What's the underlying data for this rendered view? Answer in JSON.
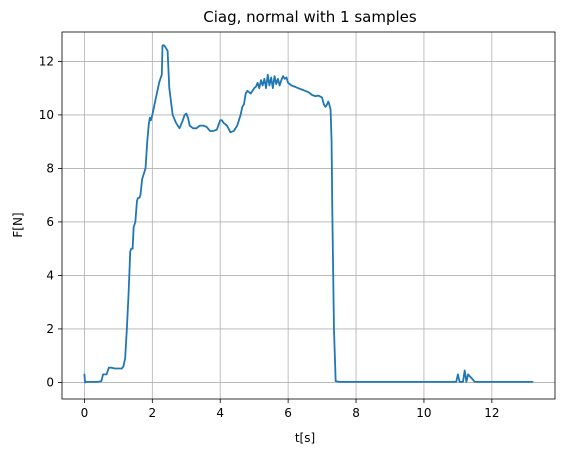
{
  "chart_data": {
    "type": "line",
    "title": "Ciag, normal with 1 samples",
    "xlabel": "t[s]",
    "ylabel": "F[N]",
    "xlim": [
      -0.66,
      13.86
    ],
    "ylim": [
      -0.62,
      13.1
    ],
    "xticks": [
      0,
      2,
      4,
      6,
      8,
      10,
      12
    ],
    "yticks": [
      0,
      2,
      4,
      6,
      8,
      10,
      12
    ],
    "grid": true,
    "colors": {
      "line": "#1f77b4",
      "grid": "#b0b0b0",
      "axes": "#000000"
    },
    "series": [
      {
        "x": [
          0.0,
          0.02,
          0.05,
          0.2,
          0.4,
          0.5,
          0.55,
          0.6,
          0.65,
          0.72,
          0.8,
          0.9,
          1.0,
          1.1,
          1.15,
          1.2,
          1.25,
          1.3,
          1.35,
          1.38,
          1.42,
          1.45,
          1.5,
          1.53,
          1.55,
          1.58,
          1.62,
          1.65,
          1.7,
          1.75,
          1.8,
          1.85,
          1.9,
          1.93,
          1.96,
          2.0,
          2.05,
          2.1,
          2.15,
          2.2,
          2.25,
          2.28,
          2.3,
          2.35,
          2.4,
          2.45,
          2.5,
          2.55,
          2.6,
          2.7,
          2.8,
          2.9,
          2.95,
          3.0,
          3.05,
          3.1,
          3.2,
          3.3,
          3.4,
          3.5,
          3.6,
          3.7,
          3.8,
          3.9,
          4.0,
          4.05,
          4.1,
          4.2,
          4.3,
          4.4,
          4.5,
          4.6,
          4.65,
          4.7,
          4.75,
          4.8,
          4.85,
          4.9,
          5.0,
          5.05,
          5.1,
          5.15,
          5.2,
          5.25,
          5.3,
          5.35,
          5.4,
          5.45,
          5.5,
          5.55,
          5.6,
          5.65,
          5.7,
          5.75,
          5.8,
          5.85,
          5.9,
          5.95,
          6.0,
          6.1,
          6.2,
          6.3,
          6.4,
          6.5,
          6.6,
          6.7,
          6.8,
          6.9,
          7.0,
          7.05,
          7.1,
          7.15,
          7.18,
          7.2,
          7.25,
          7.28,
          7.3,
          7.35,
          7.4,
          7.5,
          8.0,
          8.5,
          9.0,
          9.5,
          10.0,
          10.5,
          10.9,
          10.95,
          11.0,
          11.05,
          11.1,
          11.15,
          11.2,
          11.25,
          11.3,
          11.5,
          12.0,
          12.5,
          13.2
        ],
        "y": [
          0.3,
          0.0,
          0.02,
          0.02,
          0.02,
          0.05,
          0.3,
          0.3,
          0.3,
          0.55,
          0.55,
          0.52,
          0.52,
          0.52,
          0.6,
          0.9,
          2.0,
          3.3,
          4.9,
          5.0,
          5.0,
          5.8,
          6.0,
          6.5,
          6.8,
          6.9,
          6.9,
          7.0,
          7.6,
          7.8,
          8.0,
          9.0,
          9.7,
          9.9,
          9.8,
          10.0,
          10.3,
          10.6,
          10.9,
          11.2,
          11.4,
          11.5,
          12.6,
          12.6,
          12.5,
          12.4,
          11.0,
          10.5,
          10.0,
          9.7,
          9.5,
          9.8,
          10.0,
          10.05,
          9.9,
          9.6,
          9.5,
          9.5,
          9.6,
          9.6,
          9.55,
          9.4,
          9.4,
          9.45,
          9.8,
          9.8,
          9.7,
          9.6,
          9.35,
          9.4,
          9.6,
          10.0,
          10.3,
          10.4,
          10.8,
          10.9,
          10.85,
          10.8,
          11.0,
          11.05,
          11.2,
          11.0,
          11.3,
          11.1,
          11.35,
          11.0,
          11.5,
          11.1,
          11.4,
          11.0,
          11.45,
          11.15,
          11.35,
          11.1,
          11.3,
          11.45,
          11.35,
          11.4,
          11.2,
          11.1,
          11.05,
          11.0,
          10.95,
          10.9,
          10.85,
          10.75,
          10.7,
          10.72,
          10.65,
          10.4,
          10.3,
          10.4,
          10.5,
          10.45,
          10.2,
          9.0,
          6.5,
          2.0,
          0.05,
          0.02,
          0.02,
          0.02,
          0.02,
          0.02,
          0.02,
          0.02,
          0.02,
          0.02,
          0.3,
          0.02,
          0.02,
          0.02,
          0.45,
          0.02,
          0.3,
          0.02,
          0.02,
          0.02,
          0.02
        ]
      }
    ]
  }
}
